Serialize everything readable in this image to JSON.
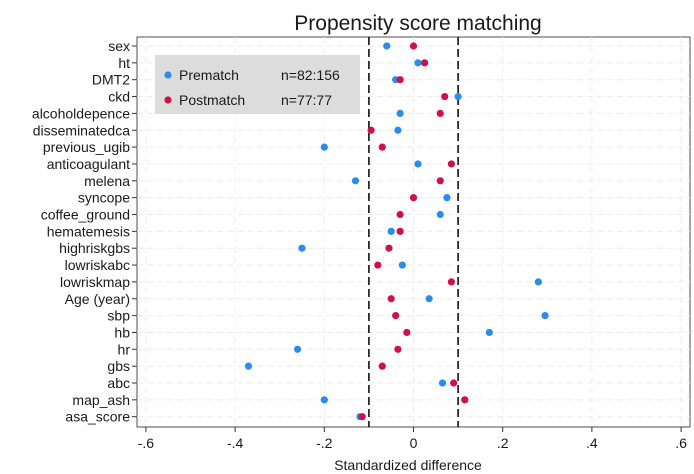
{
  "chart_data": {
    "type": "scatter",
    "title": "Propensity score matching",
    "xlabel": "Standardized difference",
    "ylabel": "",
    "xlim": [
      -0.62,
      0.62
    ],
    "x_ticks": [
      -0.6,
      -0.4,
      -0.2,
      0,
      0.2,
      0.4,
      0.6
    ],
    "x_tick_labels": [
      "-.6",
      "-.4",
      "-.2",
      "0",
      ".2",
      ".4",
      ".6"
    ],
    "reference_lines": [
      -0.1,
      0.1
    ],
    "grid": true,
    "legend_position": "top-left",
    "categories": [
      "sex",
      "ht",
      "DMT2",
      "ckd",
      "alcoholdepence",
      "disseminatedca",
      "previous_ugib",
      "anticoagulant",
      "melena",
      "syncope",
      "coffee_ground",
      "hematemesis",
      "highriskgbs",
      "lowriskabc",
      "lowriskmap",
      "Age (year)",
      "sbp",
      "hb",
      "hr",
      "gbs",
      "abc",
      "map_ash",
      "asa_score"
    ],
    "series": [
      {
        "name": "Prematch",
        "note": "n=82:156",
        "color": "#2b8ced",
        "values": [
          -0.06,
          0.01,
          -0.04,
          0.1,
          -0.03,
          -0.035,
          -0.2,
          0.01,
          -0.13,
          0.075,
          0.06,
          -0.05,
          -0.25,
          -0.025,
          0.28,
          0.035,
          0.295,
          0.17,
          -0.26,
          -0.37,
          0.065,
          -0.2,
          -0.12
        ]
      },
      {
        "name": "Postmatch",
        "note": "n=77:77",
        "color": "#d0104c",
        "values": [
          0.0,
          0.025,
          -0.03,
          0.07,
          0.06,
          -0.095,
          -0.07,
          0.085,
          0.06,
          0.0,
          -0.03,
          -0.03,
          -0.055,
          -0.08,
          0.085,
          -0.05,
          -0.04,
          -0.015,
          -0.035,
          -0.07,
          0.09,
          0.115,
          -0.115
        ]
      }
    ]
  }
}
